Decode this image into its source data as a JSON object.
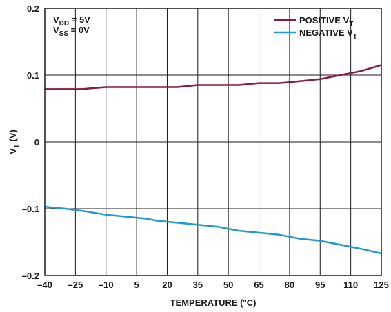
{
  "chart_data": {
    "type": "line",
    "xlabel": "TEMPERATURE (°C)",
    "ylabel_main": "V",
    "ylabel_sub": "T",
    "ylabel_unit": " (V)",
    "xlim": [
      -40,
      125
    ],
    "ylim": [
      -0.2,
      0.2
    ],
    "x_ticks": [
      -40,
      -25,
      -10,
      5,
      20,
      35,
      50,
      65,
      80,
      95,
      110,
      125
    ],
    "x_tick_labels": [
      "–40",
      "–25",
      "–10",
      "5",
      "20",
      "35",
      "50",
      "65",
      "80",
      "95",
      "110",
      "125"
    ],
    "y_ticks": [
      -0.2,
      -0.1,
      0,
      0.1,
      0.2
    ],
    "y_tick_labels": [
      "–0.2",
      "–0.1",
      "0",
      "0.1",
      "0.2"
    ],
    "grid": true,
    "legend_position": "top-right",
    "annotations": [
      {
        "main": "V",
        "sub": "DD",
        "rest": " = 5V"
      },
      {
        "main": "V",
        "sub": "SS",
        "rest": " = 0V"
      }
    ],
    "series": [
      {
        "name_main": "POSITIVE V",
        "name_sub": "T",
        "color": "#8b1a3e",
        "x": [
          -40,
          -22,
          -10,
          0,
          10,
          20,
          25,
          35,
          45,
          55,
          65,
          75,
          85,
          95,
          105,
          115,
          125
        ],
        "values": [
          0.079,
          0.079,
          0.082,
          0.082,
          0.082,
          0.082,
          0.082,
          0.085,
          0.085,
          0.085,
          0.088,
          0.088,
          0.091,
          0.094,
          0.1,
          0.106,
          0.115
        ]
      },
      {
        "name_main": "NEGATIVE V",
        "name_sub": "T",
        "color": "#1e9ad0",
        "x": [
          -40,
          -30,
          -20,
          -10,
          0,
          10,
          15,
          25,
          35,
          45,
          55,
          65,
          75,
          85,
          95,
          105,
          115,
          125
        ],
        "values": [
          -0.097,
          -0.1,
          -0.104,
          -0.109,
          -0.112,
          -0.115,
          -0.118,
          -0.121,
          -0.124,
          -0.127,
          -0.133,
          -0.136,
          -0.139,
          -0.145,
          -0.148,
          -0.154,
          -0.16,
          -0.167
        ]
      }
    ]
  }
}
